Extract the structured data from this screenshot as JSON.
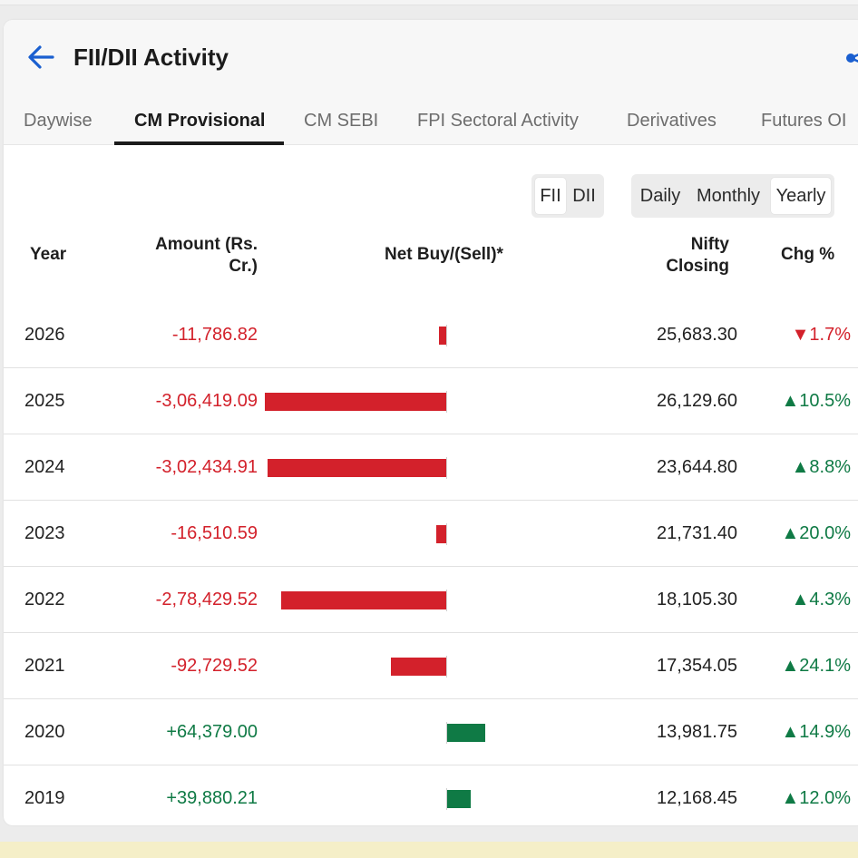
{
  "header": {
    "title": "FII/DII Activity",
    "back_icon": "arrow-left-icon",
    "share_icon": "share-icon"
  },
  "tabs": [
    {
      "label": "Daywise",
      "active": false
    },
    {
      "label": "CM Provisional",
      "active": true
    },
    {
      "label": "CM SEBI",
      "active": false
    },
    {
      "label": "FPI Sectoral Activity",
      "active": false
    },
    {
      "label": "Derivatives",
      "active": false
    },
    {
      "label": "Futures OI",
      "active": false
    }
  ],
  "investor_toggle": {
    "options": [
      "FII",
      "DII"
    ],
    "selected": "FII"
  },
  "period_toggle": {
    "options": [
      "Daily",
      "Monthly",
      "Yearly"
    ],
    "selected": "Yearly"
  },
  "columns": {
    "year": "Year",
    "amount_line1": "Amount (Rs.",
    "amount_line2": "Cr.)",
    "net": "Net Buy/(Sell)*",
    "nifty_line1": "Nifty",
    "nifty_line2": "Closing",
    "chg": "Chg %"
  },
  "colors": {
    "negative": "#d3212b",
    "positive": "#0f7a45"
  },
  "rows": [
    {
      "year": "2026",
      "amount": "-11,786.82",
      "value": -11786.82,
      "nifty": "25,683.30",
      "chg": "▼1.7%",
      "chg_dir": "down"
    },
    {
      "year": "2025",
      "amount": "-3,06,419.09",
      "value": -306419.09,
      "nifty": "26,129.60",
      "chg": "▲10.5%",
      "chg_dir": "up"
    },
    {
      "year": "2024",
      "amount": "-3,02,434.91",
      "value": -302434.91,
      "nifty": "23,644.80",
      "chg": "▲8.8%",
      "chg_dir": "up"
    },
    {
      "year": "2023",
      "amount": "-16,510.59",
      "value": -16510.59,
      "nifty": "21,731.40",
      "chg": "▲20.0%",
      "chg_dir": "up"
    },
    {
      "year": "2022",
      "amount": "-2,78,429.52",
      "value": -278429.52,
      "nifty": "18,105.30",
      "chg": "▲4.3%",
      "chg_dir": "up"
    },
    {
      "year": "2021",
      "amount": "-92,729.52",
      "value": -92729.52,
      "nifty": "17,354.05",
      "chg": "▲24.1%",
      "chg_dir": "up"
    },
    {
      "year": "2020",
      "amount": "+64,379.00",
      "value": 64379.0,
      "nifty": "13,981.75",
      "chg": "▲14.9%",
      "chg_dir": "up"
    },
    {
      "year": "2019",
      "amount": "+39,880.21",
      "value": 39880.21,
      "nifty": "12,168.45",
      "chg": "▲12.0%",
      "chg_dir": "up"
    }
  ]
}
